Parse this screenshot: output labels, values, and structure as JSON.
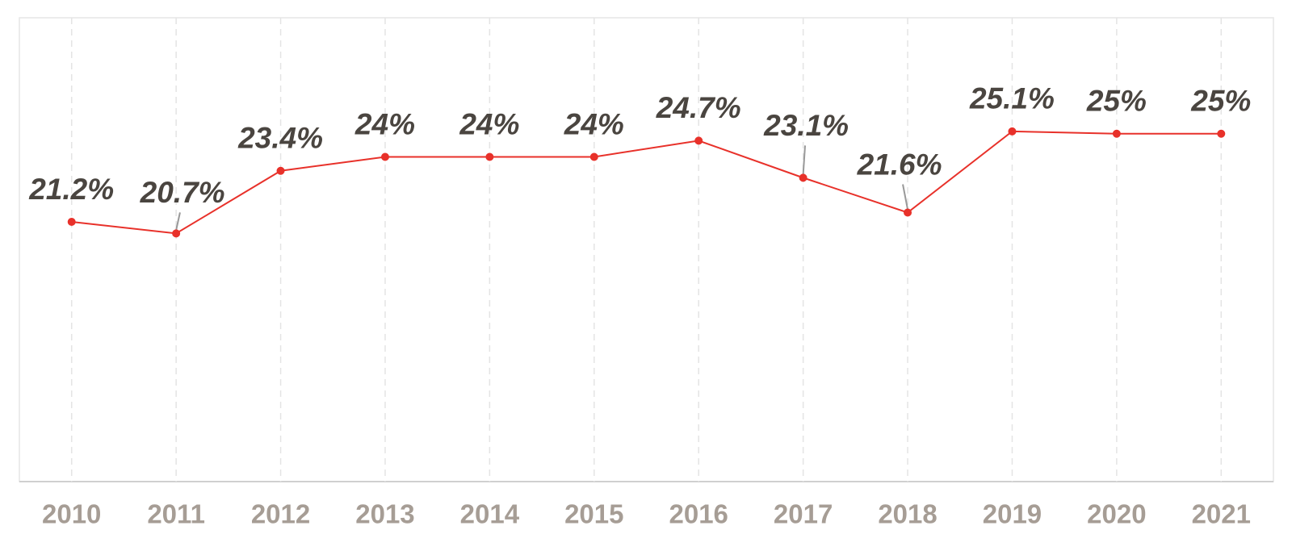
{
  "chart_data": {
    "type": "line",
    "categories": [
      "2010",
      "2011",
      "2012",
      "2013",
      "2014",
      "2015",
      "2016",
      "2017",
      "2018",
      "2019",
      "2020",
      "2021"
    ],
    "series": [
      {
        "color": "#e8312a",
        "values": [
          21.2,
          20.7,
          23.4,
          24,
          24,
          24,
          24.7,
          23.1,
          21.6,
          25.1,
          25,
          25
        ],
        "value_labels": [
          "21.2%",
          "20.7%",
          "23.4%",
          "24%",
          "24%",
          "24%",
          "24.7%",
          "23.1%",
          "21.6%",
          "25.1%",
          "25%",
          "25%"
        ]
      }
    ],
    "ylim": [
      10,
      30
    ],
    "grid": true
  }
}
